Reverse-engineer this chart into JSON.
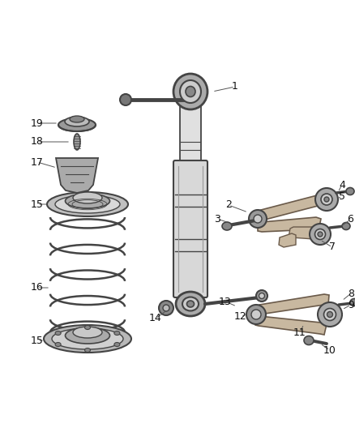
{
  "background_color": "#ffffff",
  "figsize": [
    4.38,
    5.33
  ],
  "dpi": 100,
  "arm_fill": "#c8b8a0",
  "arm_edge": "#6a5a4a",
  "dark": "#444444",
  "mid": "#888888",
  "light": "#cccccc",
  "spring_color": "#555555",
  "shock_fill": "#dddddd",
  "shock_edge": "#444444"
}
